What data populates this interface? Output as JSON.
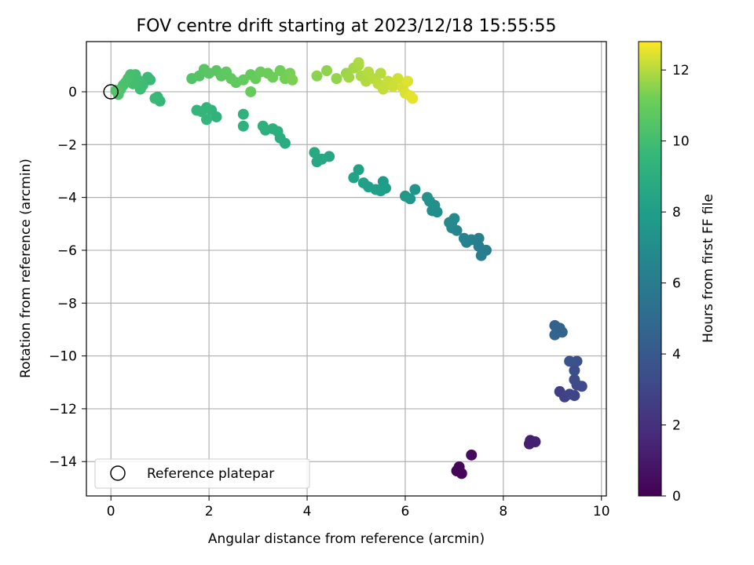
{
  "chart_data": {
    "type": "scatter",
    "title": "FOV centre drift starting at 2023/12/18 15:55:55",
    "xlabel": "Angular distance from reference (arcmin)",
    "ylabel": "Rotation from reference (arcmin)",
    "xlim": [
      -0.5,
      10.1
    ],
    "ylim": [
      -15.3,
      1.9
    ],
    "xticks": [
      0,
      2,
      4,
      6,
      8,
      10
    ],
    "yticks": [
      0,
      -2,
      -4,
      -6,
      -8,
      -10,
      -12,
      -14
    ],
    "grid": true,
    "legend": {
      "placement": "lower-left",
      "entries": [
        "Reference platepar"
      ]
    },
    "reference_point": {
      "x": 0,
      "y": 0
    },
    "colorbar": {
      "label": "Hours from first FF file",
      "range": [
        0,
        12.8
      ],
      "ticks": [
        0,
        2,
        4,
        6,
        8,
        10,
        12
      ],
      "colormap": "viridis"
    },
    "points": [
      {
        "x": 7.05,
        "y": -14.35,
        "t": 0.1
      },
      {
        "x": 7.15,
        "y": -14.45,
        "t": 0.2
      },
      {
        "x": 7.1,
        "y": -14.2,
        "t": 0.25
      },
      {
        "x": 7.35,
        "y": -13.75,
        "t": 0.4
      },
      {
        "x": 8.55,
        "y": -13.2,
        "t": 1.2
      },
      {
        "x": 8.65,
        "y": -13.25,
        "t": 1.3
      },
      {
        "x": 8.53,
        "y": -13.33,
        "t": 1.25
      },
      {
        "x": 9.15,
        "y": -11.35,
        "t": 2.7
      },
      {
        "x": 9.25,
        "y": -11.55,
        "t": 2.8
      },
      {
        "x": 9.35,
        "y": -11.45,
        "t": 2.9
      },
      {
        "x": 9.45,
        "y": -11.5,
        "t": 3.0
      },
      {
        "x": 9.5,
        "y": -11.1,
        "t": 3.1
      },
      {
        "x": 9.6,
        "y": -11.15,
        "t": 3.2
      },
      {
        "x": 9.45,
        "y": -10.9,
        "t": 3.3
      },
      {
        "x": 9.45,
        "y": -10.55,
        "t": 3.4
      },
      {
        "x": 9.5,
        "y": -10.2,
        "t": 3.5
      },
      {
        "x": 9.35,
        "y": -10.2,
        "t": 3.6
      },
      {
        "x": 9.05,
        "y": -8.85,
        "t": 4.4
      },
      {
        "x": 9.1,
        "y": -9.05,
        "t": 4.5
      },
      {
        "x": 9.2,
        "y": -9.1,
        "t": 4.6
      },
      {
        "x": 9.05,
        "y": -9.2,
        "t": 4.7
      },
      {
        "x": 9.15,
        "y": -8.95,
        "t": 4.55
      },
      {
        "x": 7.65,
        "y": -6.0,
        "t": 6.0
      },
      {
        "x": 7.55,
        "y": -6.2,
        "t": 6.1
      },
      {
        "x": 7.5,
        "y": -5.85,
        "t": 6.15
      },
      {
        "x": 7.5,
        "y": -5.55,
        "t": 6.2
      },
      {
        "x": 7.35,
        "y": -5.6,
        "t": 6.3
      },
      {
        "x": 7.25,
        "y": -5.7,
        "t": 6.35
      },
      {
        "x": 7.2,
        "y": -5.55,
        "t": 6.4
      },
      {
        "x": 7.05,
        "y": -5.25,
        "t": 6.6
      },
      {
        "x": 6.95,
        "y": -5.15,
        "t": 6.7
      },
      {
        "x": 6.9,
        "y": -4.95,
        "t": 6.8
      },
      {
        "x": 7.0,
        "y": -4.8,
        "t": 6.9
      },
      {
        "x": 6.95,
        "y": -4.95,
        "t": 6.85
      },
      {
        "x": 6.65,
        "y": -4.55,
        "t": 7.1
      },
      {
        "x": 6.55,
        "y": -4.5,
        "t": 7.15
      },
      {
        "x": 6.6,
        "y": -4.3,
        "t": 7.2
      },
      {
        "x": 6.5,
        "y": -4.15,
        "t": 7.25
      },
      {
        "x": 6.45,
        "y": -4.0,
        "t": 7.3
      },
      {
        "x": 6.2,
        "y": -3.7,
        "t": 7.5
      },
      {
        "x": 6.1,
        "y": -4.05,
        "t": 7.6
      },
      {
        "x": 6.0,
        "y": -3.95,
        "t": 7.65
      },
      {
        "x": 5.55,
        "y": -3.4,
        "t": 7.9
      },
      {
        "x": 5.6,
        "y": -3.65,
        "t": 7.95
      },
      {
        "x": 5.5,
        "y": -3.75,
        "t": 8.0
      },
      {
        "x": 5.4,
        "y": -3.7,
        "t": 8.05
      },
      {
        "x": 5.25,
        "y": -3.6,
        "t": 8.1
      },
      {
        "x": 5.15,
        "y": -3.45,
        "t": 8.15
      },
      {
        "x": 5.05,
        "y": -2.95,
        "t": 8.2
      },
      {
        "x": 4.95,
        "y": -3.25,
        "t": 8.25
      },
      {
        "x": 4.45,
        "y": -2.45,
        "t": 8.5
      },
      {
        "x": 4.3,
        "y": -2.55,
        "t": 8.55
      },
      {
        "x": 4.2,
        "y": -2.65,
        "t": 8.6
      },
      {
        "x": 4.15,
        "y": -2.3,
        "t": 8.65
      },
      {
        "x": 3.55,
        "y": -1.95,
        "t": 8.9
      },
      {
        "x": 3.45,
        "y": -1.75,
        "t": 8.95
      },
      {
        "x": 3.4,
        "y": -1.5,
        "t": 9.0
      },
      {
        "x": 3.3,
        "y": -1.4,
        "t": 9.05
      },
      {
        "x": 3.15,
        "y": -1.45,
        "t": 9.1
      },
      {
        "x": 3.1,
        "y": -1.3,
        "t": 9.15
      },
      {
        "x": 2.7,
        "y": -1.3,
        "t": 9.2
      },
      {
        "x": 2.7,
        "y": -0.85,
        "t": 9.25
      },
      {
        "x": 2.15,
        "y": -0.95,
        "t": 9.3
      },
      {
        "x": 2.05,
        "y": -0.7,
        "t": 9.35
      },
      {
        "x": 1.95,
        "y": -0.6,
        "t": 9.4
      },
      {
        "x": 1.95,
        "y": -1.05,
        "t": 9.45
      },
      {
        "x": 1.85,
        "y": -0.75,
        "t": 9.5
      },
      {
        "x": 1.75,
        "y": -0.7,
        "t": 9.55
      },
      {
        "x": 1.0,
        "y": -0.35,
        "t": 9.6
      },
      {
        "x": 0.95,
        "y": -0.2,
        "t": 9.65
      },
      {
        "x": 0.9,
        "y": -0.25,
        "t": 9.7
      },
      {
        "x": 0.8,
        "y": 0.45,
        "t": 9.75
      },
      {
        "x": 0.75,
        "y": 0.55,
        "t": 9.8
      },
      {
        "x": 0.65,
        "y": 0.25,
        "t": 9.85
      },
      {
        "x": 0.6,
        "y": 0.1,
        "t": 9.9
      },
      {
        "x": 0.55,
        "y": 0.45,
        "t": 9.95
      },
      {
        "x": 0.5,
        "y": 0.65,
        "t": 10.0
      },
      {
        "x": 0.45,
        "y": 0.3,
        "t": 10.05
      },
      {
        "x": 0.4,
        "y": 0.65,
        "t": 10.1
      },
      {
        "x": 0.35,
        "y": 0.5,
        "t": 10.15
      },
      {
        "x": 0.3,
        "y": 0.35,
        "t": 10.2
      },
      {
        "x": 0.25,
        "y": 0.25,
        "t": 10.25
      },
      {
        "x": 0.2,
        "y": 0.1,
        "t": 10.3
      },
      {
        "x": 0.15,
        "y": -0.1,
        "t": 10.35
      },
      {
        "x": 0.1,
        "y": 0.05,
        "t": 10.4
      },
      {
        "x": 1.65,
        "y": 0.5,
        "t": 10.45
      },
      {
        "x": 1.8,
        "y": 0.6,
        "t": 10.5
      },
      {
        "x": 1.9,
        "y": 0.85,
        "t": 10.55
      },
      {
        "x": 2.0,
        "y": 0.7,
        "t": 10.6
      },
      {
        "x": 2.15,
        "y": 0.8,
        "t": 10.65
      },
      {
        "x": 2.25,
        "y": 0.6,
        "t": 10.7
      },
      {
        "x": 2.35,
        "y": 0.75,
        "t": 10.75
      },
      {
        "x": 2.45,
        "y": 0.5,
        "t": 10.8
      },
      {
        "x": 2.55,
        "y": 0.35,
        "t": 10.85
      },
      {
        "x": 2.7,
        "y": 0.45,
        "t": 10.9
      },
      {
        "x": 2.85,
        "y": 0.65,
        "t": 10.95
      },
      {
        "x": 2.95,
        "y": 0.5,
        "t": 11.0
      },
      {
        "x": 3.05,
        "y": 0.75,
        "t": 11.05
      },
      {
        "x": 3.2,
        "y": 0.7,
        "t": 11.1
      },
      {
        "x": 3.3,
        "y": 0.55,
        "t": 11.15
      },
      {
        "x": 3.45,
        "y": 0.8,
        "t": 11.2
      },
      {
        "x": 3.55,
        "y": 0.5,
        "t": 11.25
      },
      {
        "x": 3.65,
        "y": 0.7,
        "t": 11.3
      },
      {
        "x": 3.7,
        "y": 0.45,
        "t": 11.35
      },
      {
        "x": 2.85,
        "y": 0.0,
        "t": 11.0
      },
      {
        "x": 4.2,
        "y": 0.6,
        "t": 11.5
      },
      {
        "x": 4.4,
        "y": 0.8,
        "t": 11.55
      },
      {
        "x": 4.6,
        "y": 0.5,
        "t": 11.6
      },
      {
        "x": 4.8,
        "y": 0.7,
        "t": 11.7
      },
      {
        "x": 4.85,
        "y": 0.55,
        "t": 11.75
      },
      {
        "x": 4.95,
        "y": 0.9,
        "t": 11.8
      },
      {
        "x": 5.05,
        "y": 1.0,
        "t": 11.85
      },
      {
        "x": 5.1,
        "y": 0.6,
        "t": 11.9
      },
      {
        "x": 5.2,
        "y": 0.4,
        "t": 11.95
      },
      {
        "x": 5.25,
        "y": 0.75,
        "t": 12.0
      },
      {
        "x": 5.35,
        "y": 0.5,
        "t": 12.05
      },
      {
        "x": 5.45,
        "y": 0.3,
        "t": 12.1
      },
      {
        "x": 5.55,
        "y": 0.1,
        "t": 12.15
      },
      {
        "x": 5.65,
        "y": 0.4,
        "t": 12.2
      },
      {
        "x": 5.75,
        "y": 0.2,
        "t": 12.25
      },
      {
        "x": 5.85,
        "y": 0.5,
        "t": 12.3
      },
      {
        "x": 5.95,
        "y": 0.15,
        "t": 12.35
      },
      {
        "x": 6.0,
        "y": -0.05,
        "t": 12.4
      },
      {
        "x": 6.05,
        "y": 0.4,
        "t": 12.45
      },
      {
        "x": 6.1,
        "y": -0.15,
        "t": 12.5
      },
      {
        "x": 6.15,
        "y": -0.25,
        "t": 12.55
      },
      {
        "x": 5.5,
        "y": 0.7,
        "t": 12.0
      },
      {
        "x": 5.05,
        "y": 1.1,
        "t": 11.9
      }
    ]
  }
}
